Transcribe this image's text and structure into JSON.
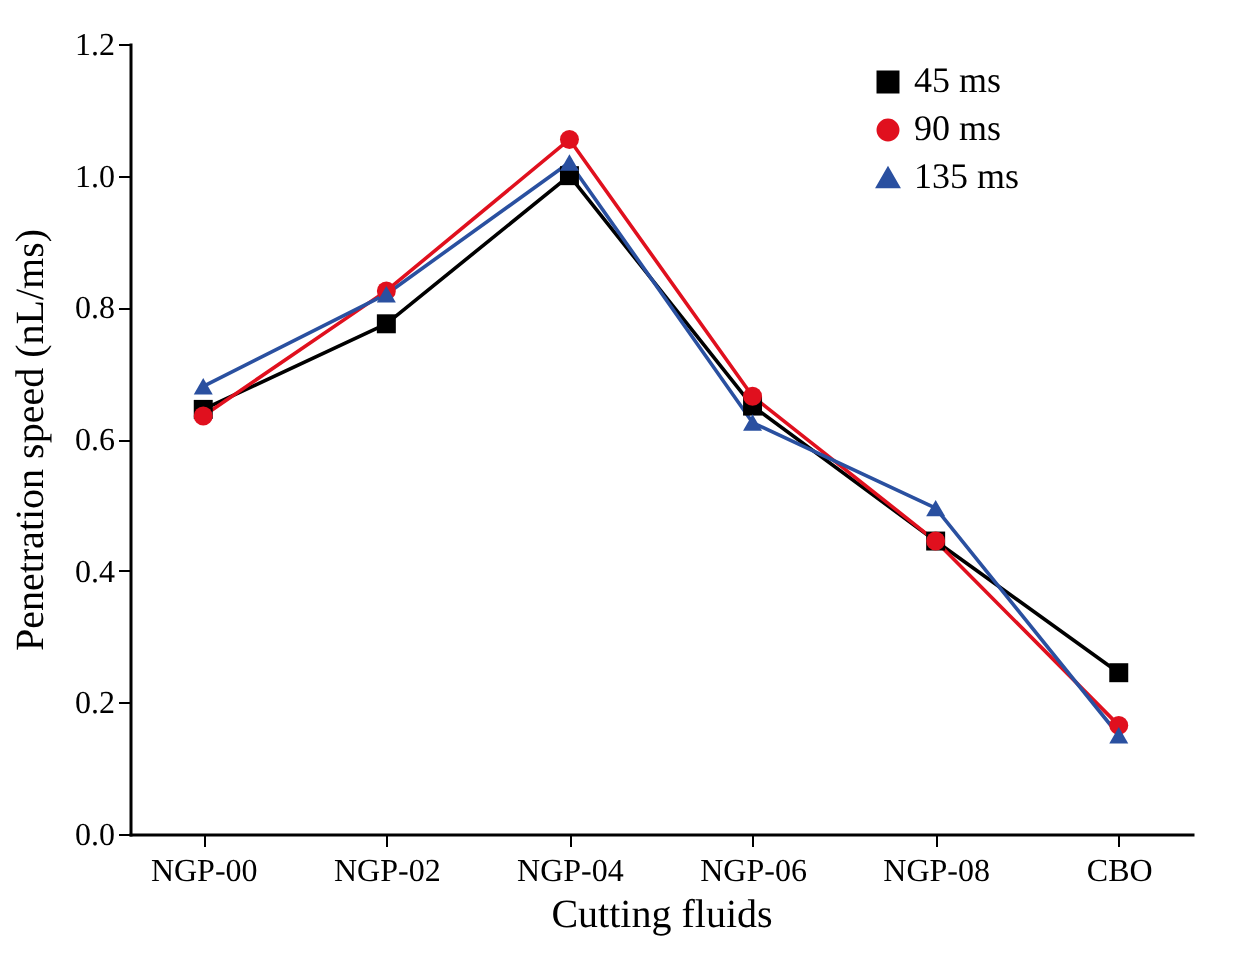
{
  "chart_data": {
    "type": "line",
    "xlabel": "Cutting fluids",
    "ylabel": "Penetration speed (nL/ms)",
    "categories": [
      "NGP-00",
      "NGP-02",
      "NGP-04",
      "NGP-06",
      "NGP-08",
      "CBO"
    ],
    "series": [
      {
        "name": "45 ms",
        "color": "#000000",
        "marker": "square",
        "values": [
          0.645,
          0.775,
          1.0,
          0.65,
          0.445,
          0.245
        ]
      },
      {
        "name": "90 ms",
        "color": "#e0101e",
        "marker": "circle",
        "values": [
          0.635,
          0.825,
          1.055,
          0.665,
          0.445,
          0.165
        ]
      },
      {
        "name": "135 ms",
        "color": "#2a50a0",
        "marker": "triangle",
        "values": [
          0.68,
          0.82,
          1.02,
          0.625,
          0.495,
          0.15
        ]
      }
    ],
    "ylim": [
      0,
      1.2
    ],
    "yticks": [
      {
        "value": 0,
        "label": "0.0"
      },
      {
        "value": 0.2,
        "label": "0.2"
      },
      {
        "value": 0.4,
        "label": "0.4"
      },
      {
        "value": 0.6,
        "label": "0.6"
      },
      {
        "value": 0.8,
        "label": "0.8"
      },
      {
        "value": 1.0,
        "label": "1.0"
      },
      {
        "value": 1.2,
        "label": "1.2"
      }
    ],
    "legend": "top right",
    "grid": false,
    "line_style": "solid"
  }
}
